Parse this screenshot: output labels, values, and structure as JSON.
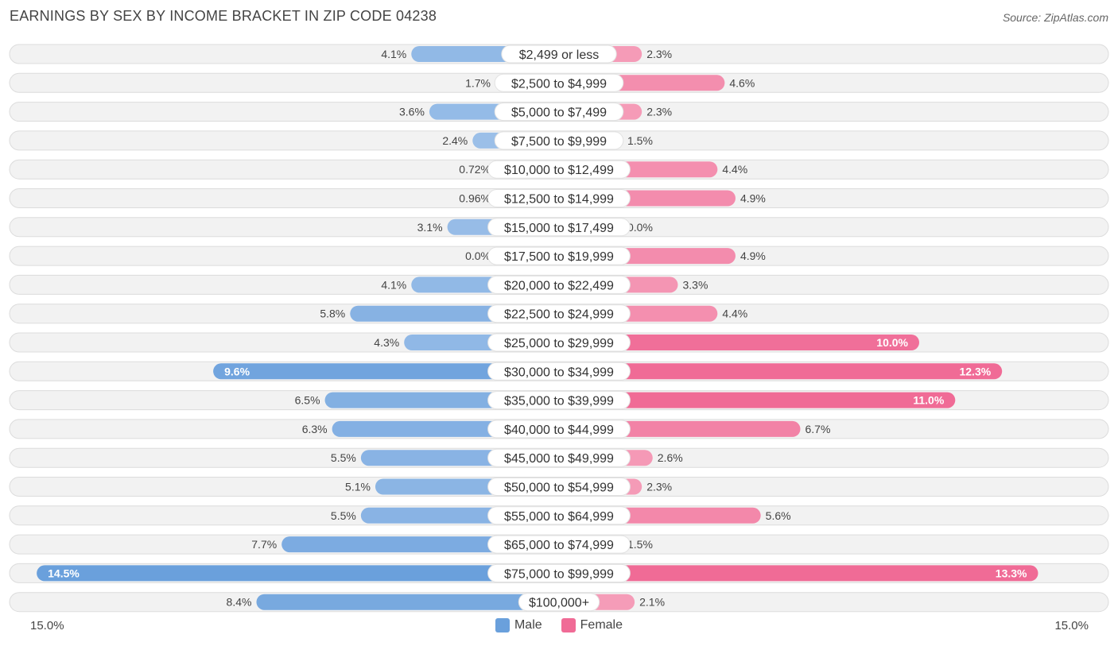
{
  "title": "EARNINGS BY SEX BY INCOME BRACKET IN ZIP CODE 04238",
  "source": "Source: ZipAtlas.com",
  "colors": {
    "male_strong": "#6aa0dc",
    "male_light": "#a9c8ec",
    "female_strong": "#f06b96",
    "female_light": "#f6a8c0",
    "row_bg": "#f2f2f2",
    "row_border": "#dcdcdc"
  },
  "legend": {
    "male_label": "Male",
    "female_label": "Female"
  },
  "axis": {
    "left_label": "15.0%",
    "right_label": "15.0%"
  },
  "chart_data": {
    "type": "bar",
    "orientation": "horizontal-diverging",
    "title": "EARNINGS BY SEX BY INCOME BRACKET IN ZIP CODE 04238",
    "xlim": [
      -15,
      15
    ],
    "categories": [
      "$2,499 or less",
      "$2,500 to $4,999",
      "$5,000 to $7,499",
      "$7,500 to $9,999",
      "$10,000 to $12,499",
      "$12,500 to $14,999",
      "$15,000 to $17,499",
      "$17,500 to $19,999",
      "$20,000 to $22,499",
      "$22,500 to $24,999",
      "$25,000 to $29,999",
      "$30,000 to $34,999",
      "$35,000 to $39,999",
      "$40,000 to $44,999",
      "$45,000 to $49,999",
      "$50,000 to $54,999",
      "$55,000 to $64,999",
      "$65,000 to $74,999",
      "$75,000 to $99,999",
      "$100,000+"
    ],
    "series": [
      {
        "name": "Male",
        "side": "left",
        "values": [
          4.1,
          1.7,
          3.6,
          2.4,
          0.72,
          0.96,
          3.1,
          0.0,
          4.1,
          5.8,
          4.3,
          9.6,
          6.5,
          6.3,
          5.5,
          5.1,
          5.5,
          7.7,
          14.5,
          8.4
        ],
        "labels": [
          "4.1%",
          "1.7%",
          "3.6%",
          "2.4%",
          "0.72%",
          "0.96%",
          "3.1%",
          "0.0%",
          "4.1%",
          "5.8%",
          "4.3%",
          "9.6%",
          "6.5%",
          "6.3%",
          "5.5%",
          "5.1%",
          "5.5%",
          "7.7%",
          "14.5%",
          "8.4%"
        ]
      },
      {
        "name": "Female",
        "side": "right",
        "values": [
          2.3,
          4.6,
          2.3,
          1.5,
          4.4,
          4.9,
          0.0,
          4.9,
          3.3,
          4.4,
          10.0,
          12.3,
          11.0,
          6.7,
          2.6,
          2.3,
          5.6,
          1.5,
          13.3,
          2.1
        ],
        "labels": [
          "2.3%",
          "4.6%",
          "2.3%",
          "1.5%",
          "4.4%",
          "4.9%",
          "0.0%",
          "4.9%",
          "3.3%",
          "4.4%",
          "10.0%",
          "12.3%",
          "11.0%",
          "6.7%",
          "2.6%",
          "2.3%",
          "5.6%",
          "1.5%",
          "13.3%",
          "2.1%"
        ]
      }
    ]
  }
}
